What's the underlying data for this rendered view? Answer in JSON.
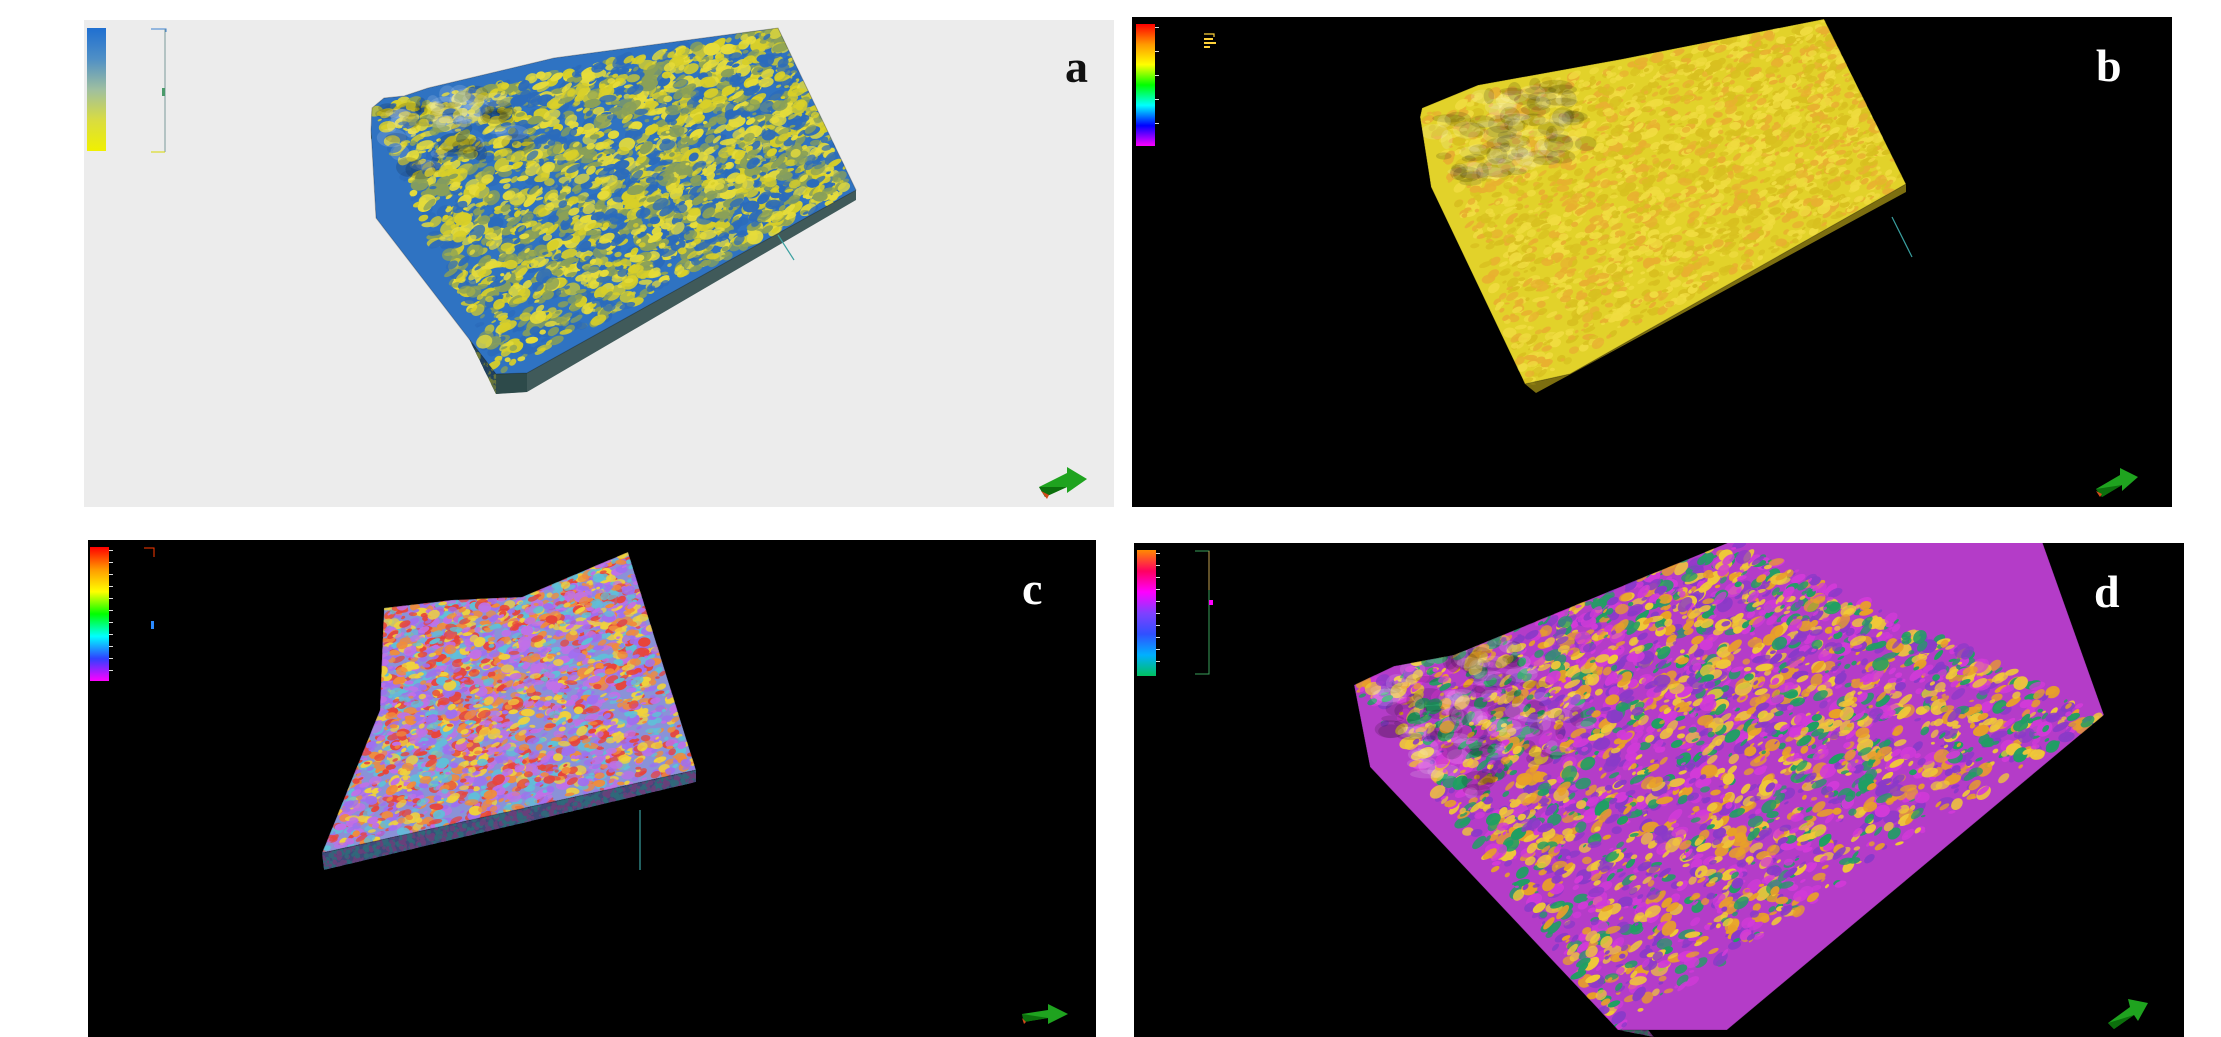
{
  "panels": {
    "a": {
      "letter": "a",
      "legend": {
        "title": "",
        "subtitle": "",
        "ticks": [],
        "gradient": [
          "#1f6fd1",
          "#4f8fc6",
          "#9fbfa0",
          "#d9dc40",
          "#f0f000"
        ]
      },
      "colors": {
        "background": "#ececec",
        "top_base": "#2f73c2",
        "blob_colors": [
          "#d8cf28",
          "#e6dc3a",
          "#2b6bbb",
          "#8aa058"
        ],
        "side_base": "#2e4a4a",
        "side_blob_colors": [
          "#6f7a3a",
          "#1f3f5f"
        ],
        "letter": "#111111"
      }
    },
    "b": {
      "letter": "b",
      "legend": {
        "title": "",
        "subtitle": "",
        "ticks": [
          "",
          "",
          "",
          "",
          ""
        ],
        "gradient": [
          "#ff0000",
          "#ff9900",
          "#ffff00",
          "#00ff00",
          "#00ffff",
          "#0000ff",
          "#ff00ff"
        ]
      },
      "colors": {
        "background": "#000000",
        "top_base": "#e2d22a",
        "blob_colors": [
          "#e8b030",
          "#f0dc40",
          "#d8c020"
        ],
        "side_base": "#8a7a12",
        "side_blob_colors": [
          "#6e6210",
          "#a89a20"
        ],
        "letter": "#ffffff"
      }
    },
    "c": {
      "letter": "c",
      "legend": {
        "title": "",
        "subtitle": "",
        "ticks": [
          "",
          "",
          "",
          "",
          "",
          "",
          "",
          "",
          "",
          "",
          ""
        ],
        "gradient": [
          "#ff0000",
          "#ff9900",
          "#ffff00",
          "#00ff00",
          "#00ffff",
          "#3040ff",
          "#ff00ff"
        ]
      },
      "colors": {
        "background": "#000000",
        "top_base": "#8a92d8",
        "blob_colors": [
          "#e8443a",
          "#f08c3c",
          "#9f6ff0",
          "#c070e8",
          "#5fc0d8",
          "#f0d23c"
        ],
        "side_base": "#3f4a7a",
        "side_blob_colors": [
          "#6a3f7a",
          "#2f6a7a"
        ],
        "letter": "#ffffff"
      }
    },
    "d": {
      "letter": "d",
      "legend": {
        "title": "",
        "subtitle": "",
        "ticks": [
          "",
          "",
          "",
          "",
          "",
          "",
          "",
          "",
          "",
          ""
        ],
        "gradient": [
          "#ff8a00",
          "#ff0060",
          "#ff00ff",
          "#8040ff",
          "#3050ff",
          "#00b0ff",
          "#00c060"
        ]
      },
      "colors": {
        "background": "#000000",
        "top_base": "#b43cc8",
        "blob_colors": [
          "#e8a028",
          "#f0c838",
          "#1f9f63",
          "#d23ad8",
          "#8a3ac8"
        ],
        "side_base": "#5a2a6a",
        "side_blob_colors": [
          "#2f6a5a",
          "#7a3a7a"
        ],
        "letter": "#ffffff"
      }
    }
  }
}
